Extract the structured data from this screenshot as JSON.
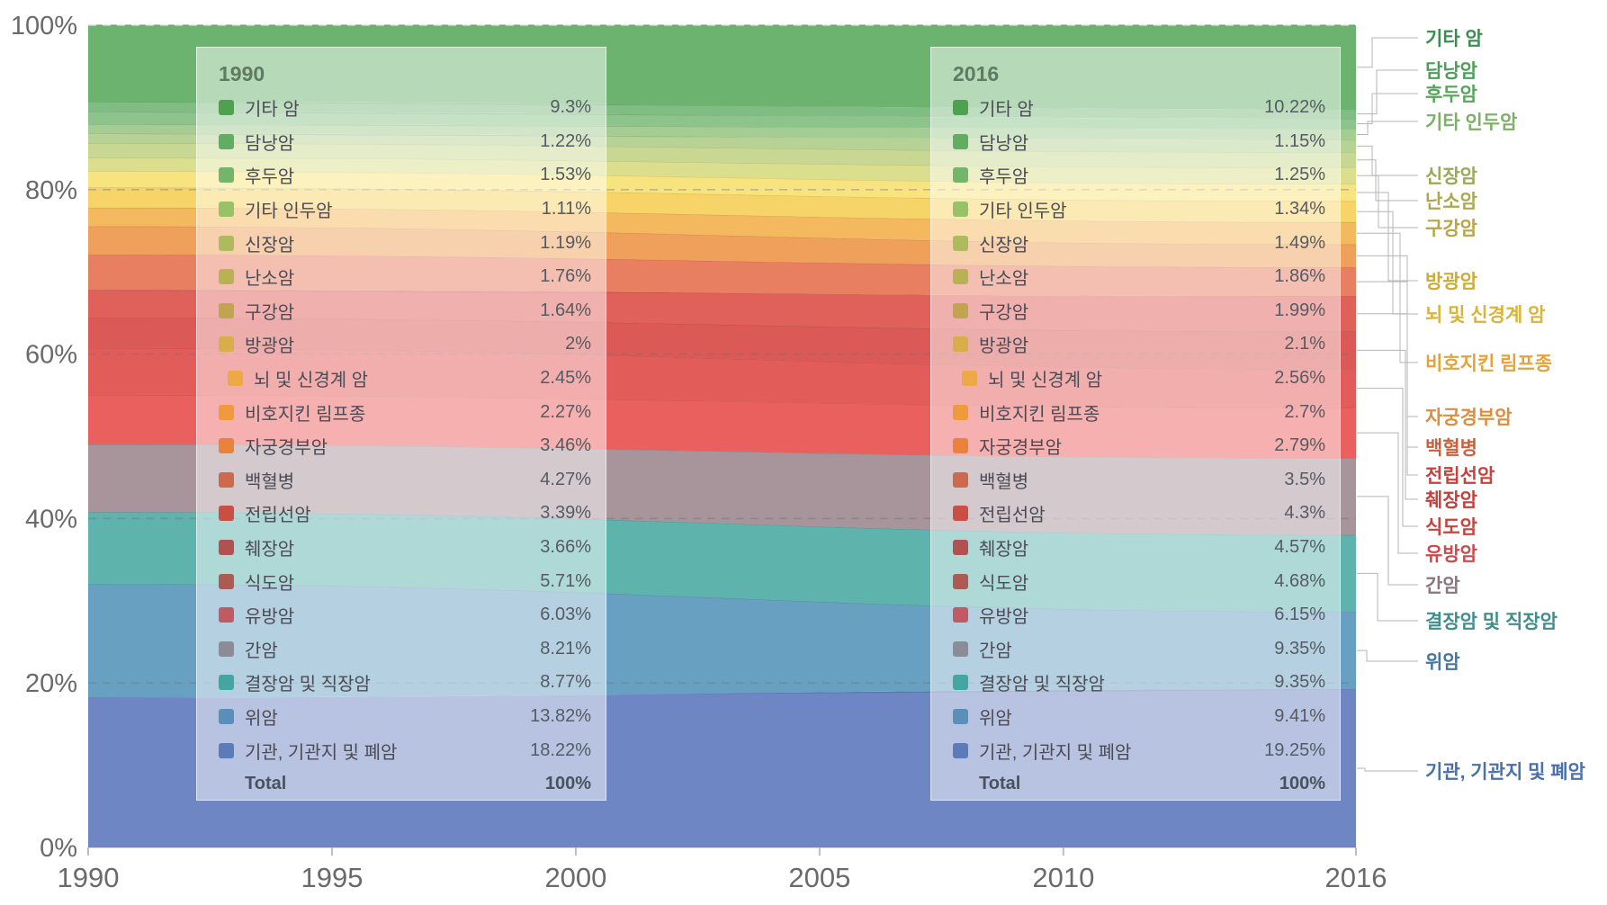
{
  "chart_data": {
    "type": "area",
    "stacked": true,
    "normalized_percent": true,
    "title": "",
    "xlabel": "",
    "ylabel": "",
    "x_domain": [
      1990,
      2016
    ],
    "ylim": [
      0,
      100
    ],
    "x_ticks": [
      1990,
      1995,
      2000,
      2005,
      2010,
      2016
    ],
    "x_tick_labels": [
      "1990",
      "1995",
      "2000",
      "2005",
      "2010",
      "2016"
    ],
    "y_ticks": [
      0,
      20,
      40,
      60,
      80,
      100
    ],
    "y_tick_labels": [
      "0%",
      "20%",
      "40%",
      "60%",
      "80%",
      "100%"
    ],
    "grid": "dashed-horizontal",
    "series": [
      {
        "id": "other-cancers",
        "name": "기타 암",
        "values": {
          "1990": 9.3,
          "2016": 10.22
        },
        "area_color": "#6db370",
        "legend_color": "#4da14f",
        "label_color": "#3e8b4f"
      },
      {
        "id": "gallbladder",
        "name": "담낭암",
        "values": {
          "1990": 1.22,
          "2016": 1.15
        },
        "area_color": "#7fbd82",
        "legend_color": "#5fae63",
        "label_color": "#4f9d58"
      },
      {
        "id": "larynx",
        "name": "후두암",
        "values": {
          "1990": 1.53,
          "2016": 1.25
        },
        "area_color": "#8dc48c",
        "legend_color": "#72b56b",
        "label_color": "#57a45b"
      },
      {
        "id": "other-pharynx",
        "name": "기타 인두암",
        "values": {
          "1990": 1.11,
          "2016": 1.34
        },
        "area_color": "#a3cd92",
        "legend_color": "#97c267",
        "label_color": "#7cb065"
      },
      {
        "id": "kidney",
        "name": "신장암",
        "values": {
          "1990": 1.19,
          "2016": 1.49
        },
        "area_color": "#b7d295",
        "legend_color": "#adba5e",
        "label_color": "#9aa957"
      },
      {
        "id": "ovary",
        "name": "난소암",
        "values": {
          "1990": 1.76,
          "2016": 1.86
        },
        "area_color": "#c8d892",
        "legend_color": "#b8b255",
        "label_color": "#aca84f"
      },
      {
        "id": "oral",
        "name": "구강암",
        "values": {
          "1990": 1.64,
          "2016": 1.99
        },
        "area_color": "#dade8d",
        "legend_color": "#c0a550",
        "label_color": "#b9a548"
      },
      {
        "id": "bladder",
        "name": "방광암",
        "values": {
          "1990": 2,
          "2016": 2.1
        },
        "area_color": "#f7e47e",
        "legend_color": "#d9ad49",
        "label_color": "#ccab39"
      },
      {
        "id": "brain-cns",
        "name": "뇌 및 신경계 암",
        "values": {
          "1990": 2.45,
          "2016": 2.56
        },
        "area_color": "#f7d468",
        "legend_color": "#eca945",
        "label_color": "#d9b439",
        "indent": true
      },
      {
        "id": "non-hodgkin-lymphoma",
        "name": "비호지킨 림프종",
        "values": {
          "1990": 2.27,
          "2016": 2.7
        },
        "area_color": "#f4b95e",
        "legend_color": "#ee9a3d",
        "label_color": "#e2a33e"
      },
      {
        "id": "cervical",
        "name": "자궁경부암",
        "values": {
          "1990": 3.46,
          "2016": 2.79
        },
        "area_color": "#efa05a",
        "legend_color": "#e9823b",
        "label_color": "#dd8d3d"
      },
      {
        "id": "leukemia",
        "name": "백혈병",
        "values": {
          "1990": 4.27,
          "2016": 3.5
        },
        "area_color": "#e87f60",
        "legend_color": "#cd6a4e",
        "label_color": "#cd603c"
      },
      {
        "id": "prostate",
        "name": "전립선암",
        "values": {
          "1990": 3.39,
          "2016": 4.3
        },
        "area_color": "#e0605a",
        "legend_color": "#c94f44",
        "label_color": "#c6423e"
      },
      {
        "id": "pancreas",
        "name": "췌장암",
        "values": {
          "1990": 3.66,
          "2016": 4.57
        },
        "area_color": "#db5a57",
        "legend_color": "#b05252",
        "label_color": "#c33f3b"
      },
      {
        "id": "esophagus",
        "name": "식도암",
        "values": {
          "1990": 5.71,
          "2016": 4.68
        },
        "area_color": "#e25d5a",
        "legend_color": "#ad5a55",
        "label_color": "#c6443f"
      },
      {
        "id": "breast",
        "name": "유방암",
        "values": {
          "1990": 6.03,
          "2016": 6.15
        },
        "area_color": "#ea605e",
        "legend_color": "#c25a63",
        "label_color": "#cb4a4b"
      },
      {
        "id": "liver",
        "name": "간암",
        "values": {
          "1990": 8.21,
          "2016": 9.35
        },
        "area_color": "#a8949b",
        "legend_color": "#8d8c96",
        "label_color": "#8b7680"
      },
      {
        "id": "colorectal",
        "name": "결장암 및 직장암",
        "values": {
          "1990": 8.77,
          "2016": 9.35
        },
        "area_color": "#5eb3ad",
        "legend_color": "#44a5a2",
        "label_color": "#3f8e8c"
      },
      {
        "id": "stomach",
        "name": "위암",
        "values": {
          "1990": 13.82,
          "2016": 9.41
        },
        "area_color": "#68a0c2",
        "legend_color": "#5a90b8",
        "label_color": "#45779e"
      },
      {
        "id": "trachea-bronchus-lung",
        "name": "기관, 기관지 및 폐암",
        "values": {
          "1990": 18.22,
          "2016": 19.25
        },
        "area_color": "#6e86c3",
        "legend_color": "#5b7cb8",
        "label_color": "#4a70ad"
      }
    ]
  },
  "tooltips": [
    {
      "title": "1990",
      "rows": [
        {
          "label": "기타 암",
          "value": "9.3%"
        },
        {
          "label": "담낭암",
          "value": "1.22%"
        },
        {
          "label": "후두암",
          "value": "1.53%"
        },
        {
          "label": "기타 인두암",
          "value": "1.11%"
        },
        {
          "label": "신장암",
          "value": "1.19%"
        },
        {
          "label": "난소암",
          "value": "1.76%"
        },
        {
          "label": "구강암",
          "value": "1.64%"
        },
        {
          "label": "방광암",
          "value": "2%"
        },
        {
          "label": "뇌 및 신경계 암",
          "value": "2.45%",
          "indent": true
        },
        {
          "label": "비호지킨 림프종",
          "value": "2.27%"
        },
        {
          "label": "자궁경부암",
          "value": "3.46%"
        },
        {
          "label": "백혈병",
          "value": "4.27%"
        },
        {
          "label": "전립선암",
          "value": "3.39%"
        },
        {
          "label": "췌장암",
          "value": "3.66%"
        },
        {
          "label": "식도암",
          "value": "5.71%"
        },
        {
          "label": "유방암",
          "value": "6.03%"
        },
        {
          "label": "간암",
          "value": "8.21%"
        },
        {
          "label": "결장암 및 직장암",
          "value": "8.77%"
        },
        {
          "label": "위암",
          "value": "13.82%"
        },
        {
          "label": "기관, 기관지 및 폐암",
          "value": "18.22%"
        }
      ],
      "total": {
        "label": "Total",
        "value": "100%"
      }
    },
    {
      "title": "2016",
      "rows": [
        {
          "label": "기타 암",
          "value": "10.22%"
        },
        {
          "label": "담낭암",
          "value": "1.15%"
        },
        {
          "label": "후두암",
          "value": "1.25%"
        },
        {
          "label": "기타 인두암",
          "value": "1.34%"
        },
        {
          "label": "신장암",
          "value": "1.49%"
        },
        {
          "label": "난소암",
          "value": "1.86%"
        },
        {
          "label": "구강암",
          "value": "1.99%"
        },
        {
          "label": "방광암",
          "value": "2.1%"
        },
        {
          "label": "뇌 및 신경계 암",
          "value": "2.56%",
          "indent": true
        },
        {
          "label": "비호지킨 림프종",
          "value": "2.7%"
        },
        {
          "label": "자궁경부암",
          "value": "2.79%"
        },
        {
          "label": "백혈병",
          "value": "3.5%"
        },
        {
          "label": "전립선암",
          "value": "4.3%"
        },
        {
          "label": "췌장암",
          "value": "4.57%"
        },
        {
          "label": "식도암",
          "value": "4.68%"
        },
        {
          "label": "유방암",
          "value": "6.15%"
        },
        {
          "label": "간암",
          "value": "9.35%"
        },
        {
          "label": "결장암 및 직장암",
          "value": "9.35%"
        },
        {
          "label": "위암",
          "value": "9.41%"
        },
        {
          "label": "기관, 기관지 및 폐암",
          "value": "19.25%"
        }
      ],
      "total": {
        "label": "Total",
        "value": "100%"
      }
    }
  ],
  "right_labels": [
    {
      "text": "기타 암",
      "color": "#3e8b4f"
    },
    {
      "text": "담낭암",
      "color": "#4f9d58"
    },
    {
      "text": "후두암",
      "color": "#57a45b"
    },
    {
      "text": "기타 인두암",
      "color": "#7cb065"
    },
    {
      "text": "신장암",
      "color": "#9aa957"
    },
    {
      "text": "난소암",
      "color": "#aca84f"
    },
    {
      "text": "구강암",
      "color": "#b9a548"
    },
    {
      "text": "방광암",
      "color": "#ccab39"
    },
    {
      "text": "뇌 및 신경계 암",
      "color": "#d9b439"
    },
    {
      "text": "비호지킨 림프종",
      "color": "#e2a33e"
    },
    {
      "text": "자궁경부암",
      "color": "#dd8d3d"
    },
    {
      "text": "백혈병",
      "color": "#cd603c"
    },
    {
      "text": "전립선암",
      "color": "#c6423e"
    },
    {
      "text": "췌장암",
      "color": "#c33f3b"
    },
    {
      "text": "식도암",
      "color": "#c6443f"
    },
    {
      "text": "유방암",
      "color": "#cb4a4b"
    },
    {
      "text": "간암",
      "color": "#8b7680"
    },
    {
      "text": "결장암 및 직장암",
      "color": "#3f8e8c"
    },
    {
      "text": "위암",
      "color": "#45779e"
    },
    {
      "text": "기관, 기관지 및 폐암",
      "color": "#4a70ad"
    }
  ]
}
